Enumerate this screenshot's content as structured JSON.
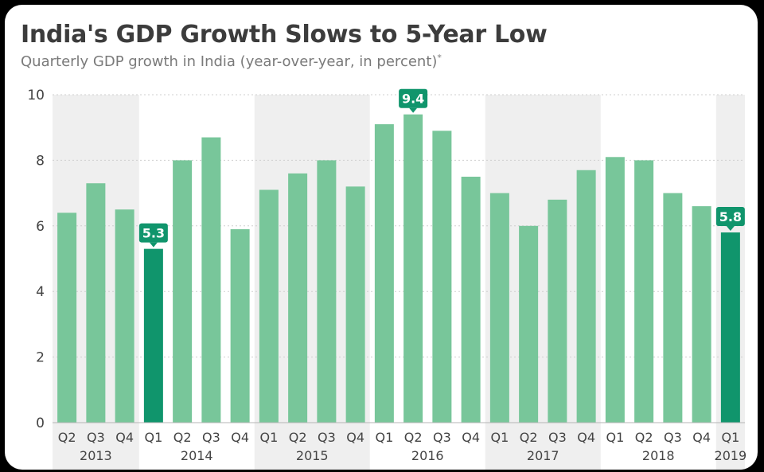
{
  "chart_data": {
    "type": "bar",
    "title": "India's GDP Growth Slows to 5-Year Low",
    "subtitle": "Quarterly GDP growth in India (year-over-year, in percent)",
    "subtitle_note": "*",
    "xlabel": "",
    "ylabel": "",
    "ylim": [
      0,
      10
    ],
    "yticks": [
      "0",
      "2",
      "4",
      "6",
      "8",
      "10"
    ],
    "grid": true,
    "years": [
      {
        "label": "2013",
        "quarters": 3,
        "shaded": true
      },
      {
        "label": "2014",
        "quarters": 4,
        "shaded": false
      },
      {
        "label": "2015",
        "quarters": 4,
        "shaded": true
      },
      {
        "label": "2016",
        "quarters": 4,
        "shaded": false
      },
      {
        "label": "2017",
        "quarters": 4,
        "shaded": true
      },
      {
        "label": "2018",
        "quarters": 4,
        "shaded": false
      },
      {
        "label": "2019",
        "quarters": 1,
        "shaded": true
      }
    ],
    "categories": [
      "Q2",
      "Q3",
      "Q4",
      "Q1",
      "Q2",
      "Q3",
      "Q4",
      "Q1",
      "Q2",
      "Q3",
      "Q4",
      "Q1",
      "Q2",
      "Q3",
      "Q4",
      "Q1",
      "Q2",
      "Q3",
      "Q4",
      "Q1",
      "Q2",
      "Q3",
      "Q4",
      "Q1"
    ],
    "values": [
      6.4,
      7.3,
      6.5,
      5.3,
      8.0,
      8.7,
      5.9,
      7.1,
      7.6,
      8.0,
      7.2,
      9.1,
      9.4,
      8.9,
      7.5,
      7.0,
      6.0,
      6.8,
      7.7,
      8.1,
      8.0,
      7.0,
      6.6,
      5.8
    ],
    "highlighted": [
      3,
      23
    ],
    "callouts": [
      {
        "index": 3,
        "text": "5.3"
      },
      {
        "index": 12,
        "text": "9.4"
      },
      {
        "index": 23,
        "text": "5.8"
      }
    ],
    "colors": {
      "bar": "#78c69a",
      "bar_highlight": "#10956c",
      "callout_bg": "#10956c",
      "band_shaded": "#efefef",
      "grid": "#cfcfcf"
    }
  }
}
